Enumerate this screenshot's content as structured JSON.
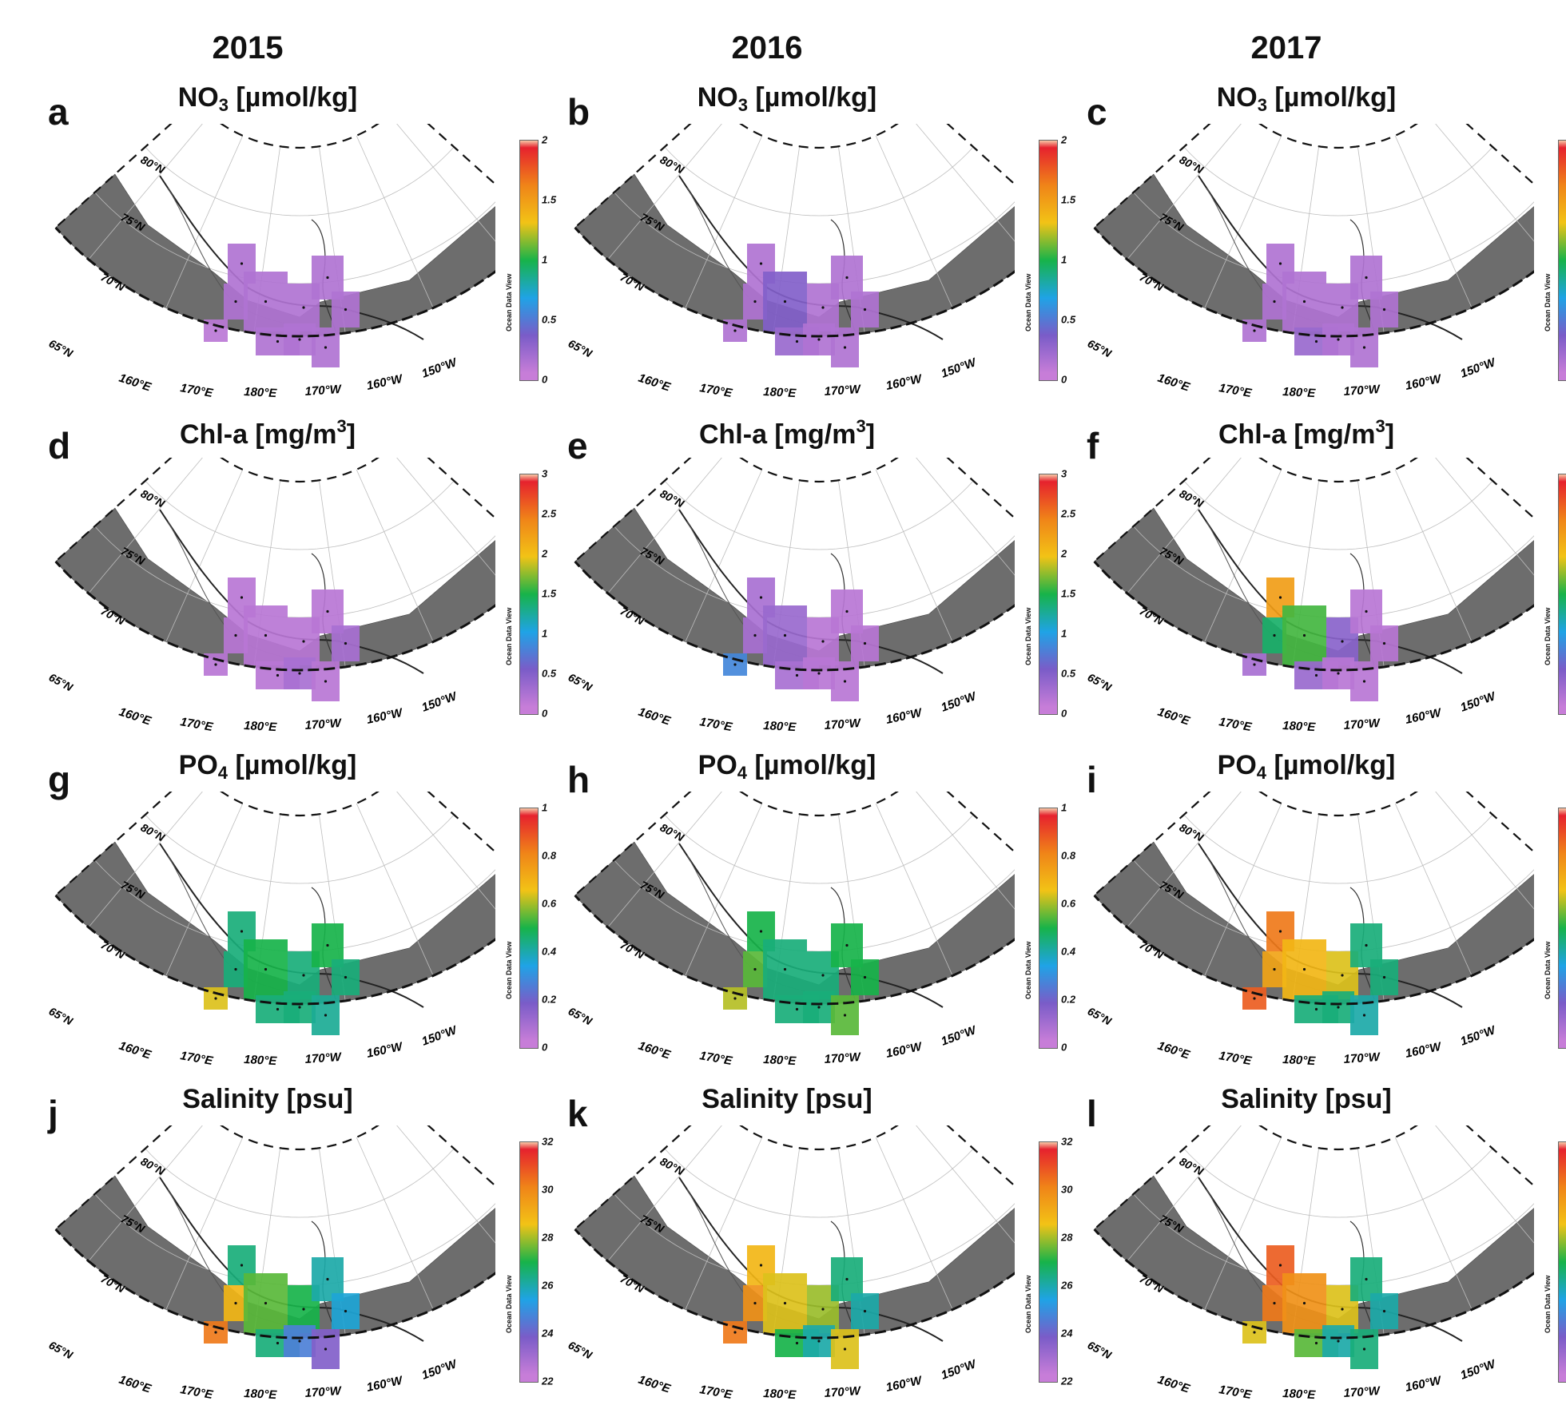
{
  "years": [
    "2015",
    "2016",
    "2017"
  ],
  "lat_labels": [
    "80°N",
    "75°N",
    "70°N",
    "65°N"
  ],
  "lon_labels": [
    "160°E",
    "170°E",
    "180°E",
    "170°W",
    "160°W",
    "150°W"
  ],
  "colorbar_brand": "Ocean Data View",
  "colors": {
    "land": "#6d6d6d",
    "ocean": "#ffffff",
    "colormap": [
      "#c77dd8",
      "#7a5cc8",
      "#1fa3e6",
      "#17b34a",
      "#f2c316",
      "#f08418",
      "#e6222e",
      "#f6c7a6"
    ]
  },
  "rows": [
    {
      "variable": "NO3",
      "title": {
        "main": "NO",
        "sub": "3",
        "sup": "",
        "unit": " [µmol/kg]"
      },
      "colorbar": {
        "min": 0,
        "max": 2,
        "ticks": [
          "0",
          "0.5",
          "1",
          "1.5",
          "2"
        ]
      }
    },
    {
      "variable": "Chl-a",
      "title": {
        "main": "Chl-a [mg/m",
        "sub": "",
        "sup": "3",
        "unit": "]"
      },
      "colorbar": {
        "min": 0,
        "max": 3,
        "ticks": [
          "0",
          "0.5",
          "1",
          "1.5",
          "2",
          "2.5",
          "3"
        ]
      }
    },
    {
      "variable": "PO4",
      "title": {
        "main": "PO",
        "sub": "4",
        "sup": "",
        "unit": " [µmol/kg]"
      },
      "colorbar": {
        "min": 0,
        "max": 1,
        "ticks": [
          "0",
          "0.2",
          "0.4",
          "0.6",
          "0.8",
          "1"
        ]
      }
    },
    {
      "variable": "Salinity",
      "title": {
        "main": "Salinity [psu]",
        "sub": "",
        "sup": "",
        "unit": ""
      },
      "colorbar": {
        "min": 22,
        "max": 32,
        "ticks": [
          "22",
          "24",
          "26",
          "28",
          "30",
          "32"
        ]
      }
    }
  ],
  "panels": [
    {
      "letter": "a",
      "row": 0,
      "col": 0,
      "values": [
        0.05,
        0.1,
        0.1,
        0.1,
        0.1,
        0.1,
        0.1,
        0.1,
        0.1,
        0.1
      ]
    },
    {
      "letter": "b",
      "row": 0,
      "col": 1,
      "values": [
        0.1,
        0.1,
        0.1,
        0.3,
        0.1,
        0.2,
        0.1,
        0.1,
        0.1,
        0.1
      ]
    },
    {
      "letter": "c",
      "row": 0,
      "col": 2,
      "values": [
        0.1,
        0.1,
        0.1,
        0.1,
        0.1,
        0.2,
        0.1,
        0.1,
        0.1,
        0.1
      ]
    },
    {
      "letter": "d",
      "row": 1,
      "col": 0,
      "values": [
        0.1,
        0.1,
        0.1,
        0.1,
        0.1,
        0.1,
        0.1,
        0.2,
        0.2,
        0.1
      ]
    },
    {
      "letter": "e",
      "row": 1,
      "col": 1,
      "values": [
        0.8,
        0.2,
        0.2,
        0.3,
        0.1,
        0.2,
        0.1,
        0.1,
        0.1,
        0.1
      ]
    },
    {
      "letter": "f",
      "row": 1,
      "col": 2,
      "values": [
        0.2,
        1.4,
        2.3,
        1.6,
        0.4,
        0.3,
        0.1,
        0.1,
        0.1,
        0.1
      ]
    },
    {
      "letter": "g",
      "row": 2,
      "col": 0,
      "values": [
        0.65,
        0.45,
        0.45,
        0.5,
        0.45,
        0.45,
        0.5,
        0.45,
        0.45,
        0.42
      ]
    },
    {
      "letter": "h",
      "row": 2,
      "col": 1,
      "values": [
        0.62,
        0.55,
        0.5,
        0.45,
        0.45,
        0.45,
        0.5,
        0.5,
        0.45,
        0.55
      ]
    },
    {
      "letter": "i",
      "row": 2,
      "col": 2,
      "values": [
        0.9,
        0.75,
        0.85,
        0.7,
        0.65,
        0.45,
        0.45,
        0.45,
        0.45,
        0.4
      ]
    },
    {
      "letter": "j",
      "row": 3,
      "col": 0,
      "values": [
        30.5,
        29,
        26.5,
        27.5,
        27,
        26.5,
        26,
        25.5,
        24.5,
        23.5
      ]
    },
    {
      "letter": "k",
      "row": 3,
      "col": 1,
      "values": [
        30.5,
        30,
        29,
        28.5,
        28,
        27,
        26.5,
        26,
        26,
        28.5
      ]
    },
    {
      "letter": "l",
      "row": 3,
      "col": 2,
      "values": [
        28.5,
        30.5,
        31,
        30,
        28.5,
        27.5,
        26.5,
        26,
        26,
        26.5
      ]
    }
  ]
}
